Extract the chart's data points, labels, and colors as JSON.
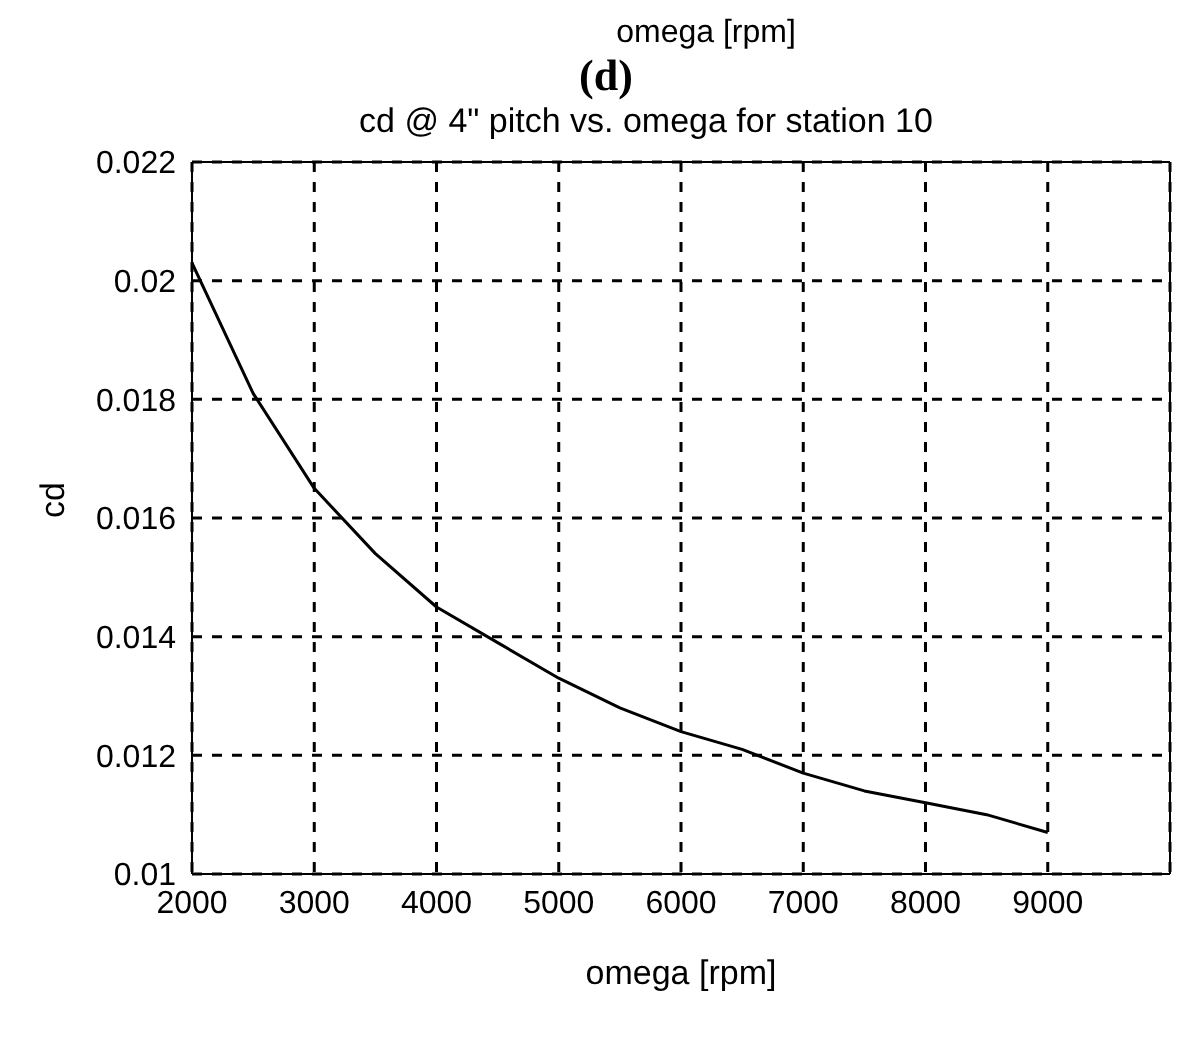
{
  "chart_data": {
    "type": "line",
    "title": "cd @ 4\" pitch vs. omega for station 10",
    "annotations": [
      "omega [rpm]",
      "(d)"
    ],
    "xlabel": "omega [rpm]",
    "ylabel": "cd",
    "x": [
      2000,
      2500,
      3000,
      3500,
      4000,
      4500,
      5000,
      5500,
      6000,
      6500,
      7000,
      7500,
      8000,
      8500,
      9000
    ],
    "series": [
      {
        "color": "#000000",
        "values": [
          0.0203,
          0.0181,
          0.0165,
          0.0154,
          0.0145,
          0.0139,
          0.0133,
          0.0128,
          0.0124,
          0.0121,
          0.0117,
          0.0114,
          0.0112,
          0.011,
          0.0107
        ]
      }
    ],
    "xlim": [
      2000,
      10000
    ],
    "xticks": [
      2000,
      3000,
      4000,
      5000,
      6000,
      7000,
      8000,
      9000
    ],
    "ylim": [
      0.01,
      0.022
    ],
    "yticks": [
      0.01,
      0.012,
      0.014,
      0.016,
      0.018,
      0.02,
      0.022
    ],
    "grid": true,
    "marker": "none",
    "line_style": "solid"
  }
}
